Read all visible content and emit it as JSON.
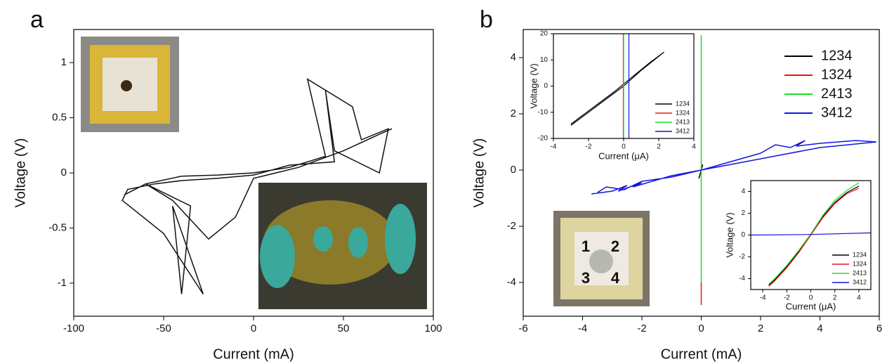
{
  "chart_data": [
    {
      "type": "line",
      "panel_label": "a",
      "x_label": "Current (mA)",
      "y_label": "Voltage (V)",
      "xlim": [
        -100,
        100
      ],
      "xticks": [
        -100,
        -50,
        0,
        50,
        100
      ],
      "ylim": [
        -1.3,
        1.3
      ],
      "yticks": [
        -1,
        -0.5,
        0,
        0.5,
        1
      ],
      "series": [
        {
          "color": "#111111",
          "x": [
            -72,
            -60,
            -40,
            -20,
            0,
            20,
            40,
            30,
            55,
            60,
            75,
            70,
            45,
            40,
            45,
            20,
            0,
            -20,
            -40,
            -55,
            -70,
            -73,
            -50,
            -28,
            -45,
            -40,
            -35,
            -60,
            -45,
            -25,
            -10,
            0,
            25,
            50,
            70,
            77
          ],
          "values": [
            -0.2,
            -0.1,
            -0.03,
            -0.02,
            0,
            0.05,
            0.15,
            0.85,
            0.6,
            0.3,
            0.4,
            0,
            0.2,
            0.75,
            0.1,
            0.07,
            -0.02,
            -0.05,
            -0.07,
            -0.1,
            -0.15,
            -0.25,
            -0.55,
            -1.1,
            -0.3,
            -1.1,
            -0.3,
            -0.1,
            -0.25,
            -0.6,
            -0.4,
            -0.05,
            0.05,
            0.2,
            0.35,
            0.4
          ]
        }
      ]
    },
    {
      "type": "line",
      "panel_label": "b",
      "x_label": "Current (mA)",
      "y_label": "Voltage (V)",
      "xlim": [
        -6,
        6
      ],
      "xticks": [
        -6,
        -4,
        -2,
        0,
        2,
        4,
        6
      ],
      "ylim": [
        -5.2,
        5
      ],
      "yticks": [
        -4,
        -2,
        0,
        2,
        4
      ],
      "legend": "upper right",
      "photo_labels": [
        "1",
        "2",
        "3",
        "4"
      ],
      "series": [
        {
          "name": "1234",
          "color": "#000000",
          "x": [
            -0.08,
            0,
            0.05
          ],
          "values": [
            -0.3,
            0,
            0.2
          ]
        },
        {
          "name": "1324",
          "color": "#e8141b",
          "x": [
            0,
            0
          ],
          "values": [
            -4,
            -4.8
          ]
        },
        {
          "name": "2413",
          "color": "#22dd22",
          "x": [
            0,
            0
          ],
          "values": [
            -4,
            4.8
          ]
        },
        {
          "name": "3412",
          "color": "#1414e0",
          "x": [
            -3.7,
            -3,
            -2.5,
            -2.8,
            -2,
            -2.3,
            -1,
            0,
            1,
            2,
            2.5,
            3,
            3.5,
            3.2,
            4,
            5.2,
            5.9,
            4,
            2,
            1,
            0,
            -1,
            -2,
            -2.6,
            -3.2,
            -3.5
          ],
          "values": [
            -0.85,
            -0.75,
            -0.55,
            -0.75,
            -0.45,
            -0.6,
            -0.2,
            0,
            0.3,
            0.6,
            0.9,
            0.8,
            1.05,
            0.85,
            0.95,
            1.05,
            1.0,
            0.8,
            0.4,
            0.2,
            0,
            -0.25,
            -0.4,
            -0.7,
            -0.6,
            -0.8
          ]
        }
      ]
    },
    {
      "type": "line",
      "x_label": "Current (μA)",
      "y_label": "Voltage (V)",
      "xlim": [
        -4,
        4
      ],
      "xticks": [
        -4,
        -2,
        0,
        2,
        4
      ],
      "ylim": [
        -20,
        20
      ],
      "yticks": [
        -20,
        -10,
        0,
        10,
        20
      ],
      "legend": "lower right",
      "series": [
        {
          "name": "1234",
          "color": "#000000",
          "x": [
            -3,
            -2,
            -1,
            0,
            0.5,
            1,
            2.3,
            1.5,
            0.4,
            -0.5,
            -2,
            -3
          ],
          "values": [
            -15,
            -10,
            -5,
            0,
            3,
            6,
            13,
            9,
            3,
            -2,
            -9.5,
            -14.5
          ]
        },
        {
          "name": "1324",
          "color": "#e8141b",
          "x": [
            -0.02,
            -0.02
          ],
          "values": [
            -20,
            20
          ]
        },
        {
          "name": "2413",
          "color": "#22dd22",
          "x": [
            0,
            0
          ],
          "values": [
            -20,
            20
          ]
        },
        {
          "name": "3412",
          "color": "#1414e0",
          "x": [
            0.3,
            0.3
          ],
          "values": [
            -20,
            20
          ]
        }
      ]
    },
    {
      "type": "line",
      "x_label": "Current (μA)",
      "y_label": "Voltage (V)",
      "xlim": [
        -5,
        5
      ],
      "xticks": [
        -4,
        -2,
        0,
        2,
        4
      ],
      "ylim": [
        -5,
        5
      ],
      "yticks": [
        -4,
        -2,
        0,
        2,
        4
      ],
      "legend": "lower right",
      "series": [
        {
          "name": "1234",
          "color": "#000000",
          "x": [
            -3.5,
            -3,
            -2,
            -1,
            0,
            1,
            2,
            3,
            4
          ],
          "values": [
            -4.6,
            -4.1,
            -2.9,
            -1.5,
            0,
            1.7,
            3.0,
            3.9,
            4.5
          ]
        },
        {
          "name": "1324",
          "color": "#e8141b",
          "x": [
            -3.5,
            -3,
            -2,
            -1,
            0,
            1,
            2,
            3,
            4
          ],
          "values": [
            -4.7,
            -4.2,
            -3.0,
            -1.6,
            0,
            1.6,
            2.9,
            3.8,
            4.3
          ]
        },
        {
          "name": "2413",
          "color": "#22dd22",
          "x": [
            -3.5,
            -3,
            -2,
            -1,
            0,
            1,
            2,
            3,
            4
          ],
          "values": [
            -4.5,
            -4.0,
            -2.8,
            -1.4,
            0.1,
            1.8,
            3.2,
            4.1,
            4.8
          ]
        },
        {
          "name": "3412",
          "color": "#1414e0",
          "x": [
            -5,
            0,
            5
          ],
          "values": [
            0,
            0.05,
            0.2
          ]
        }
      ]
    }
  ]
}
